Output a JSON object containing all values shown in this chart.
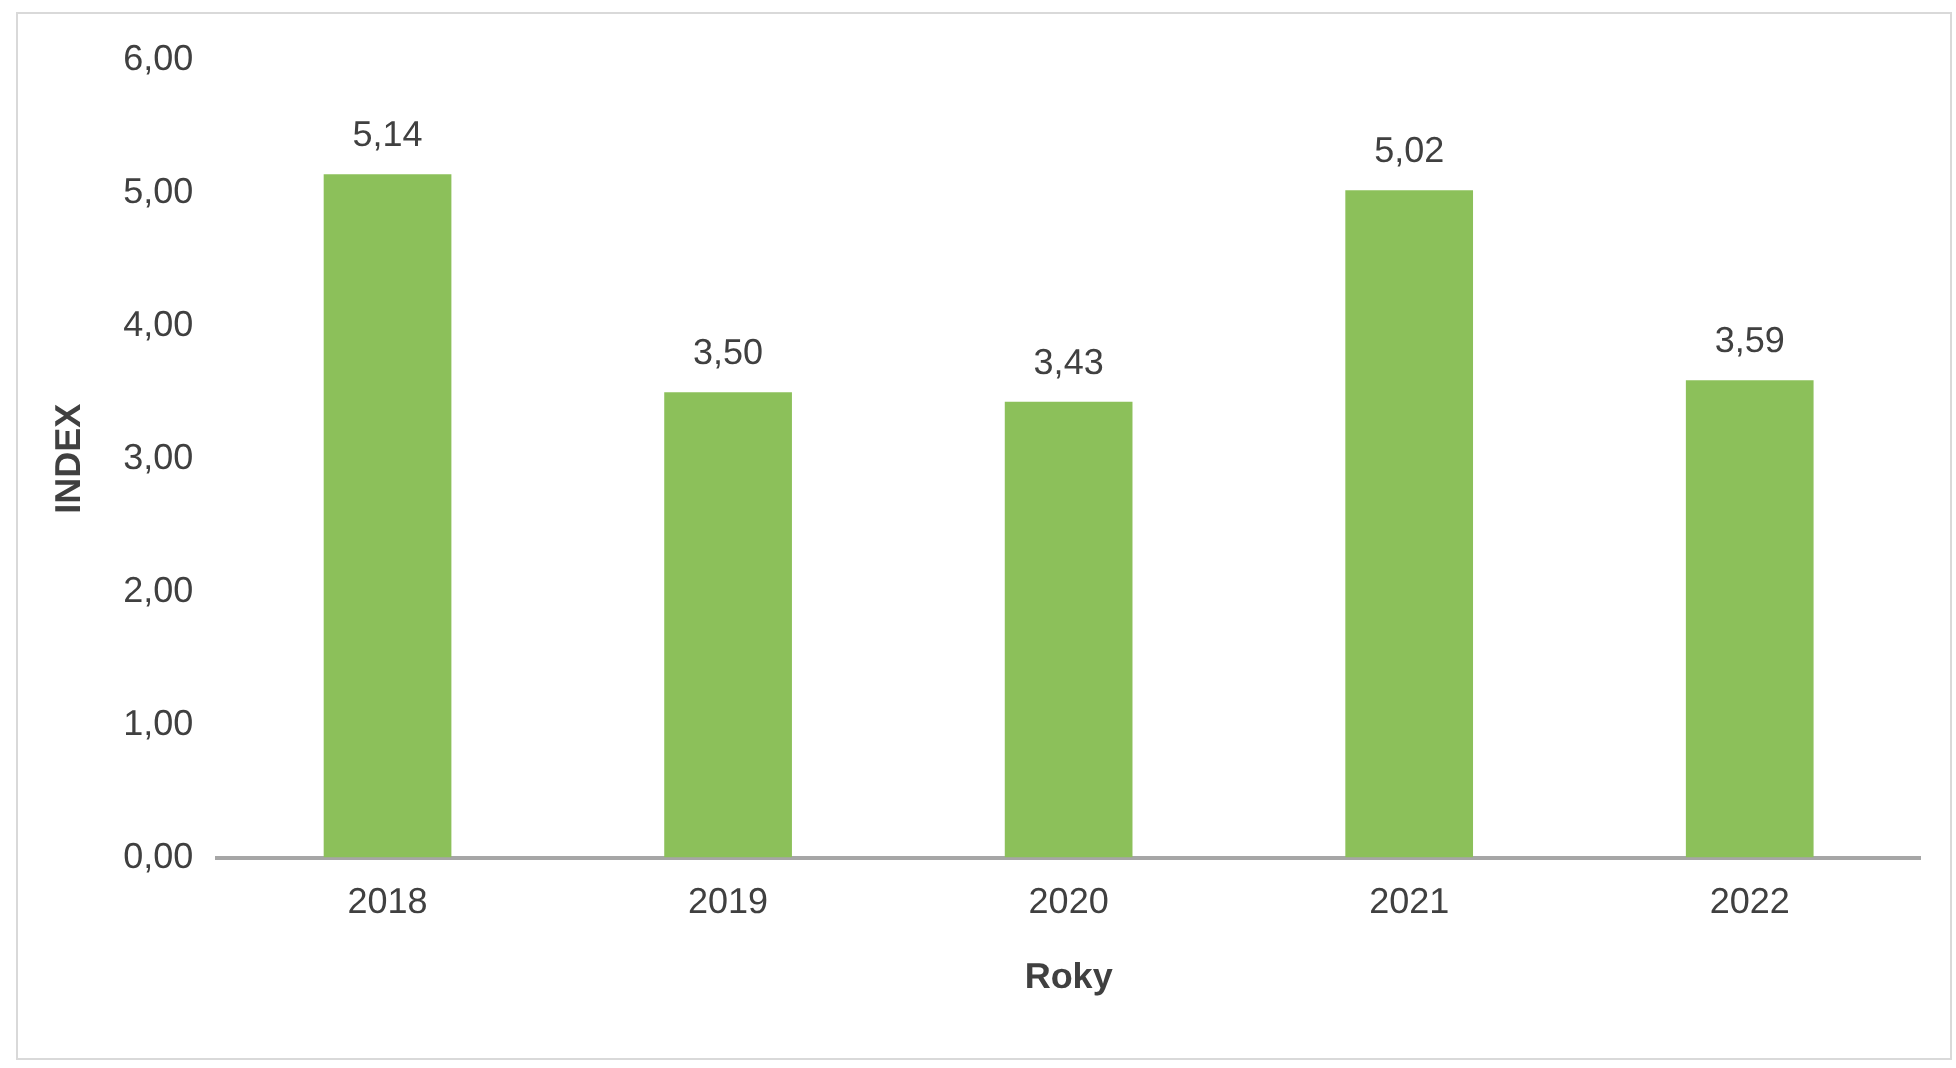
{
  "chart_data": {
    "type": "bar",
    "xlabel": "Roky",
    "ylabel": "INDEX",
    "categories": [
      "2018",
      "2019",
      "2020",
      "2021",
      "2022"
    ],
    "values": [
      5.14,
      3.5,
      3.43,
      5.02,
      3.59
    ],
    "value_labels": [
      "5,14",
      "3,50",
      "3,43",
      "5,02",
      "3,59"
    ],
    "color": "#8cc05a",
    "ylim": [
      0,
      6
    ],
    "yticks": [
      {
        "value": 0,
        "label": "0,00"
      },
      {
        "value": 1,
        "label": "1,00"
      },
      {
        "value": 2,
        "label": "2,00"
      },
      {
        "value": 3,
        "label": "3,00"
      },
      {
        "value": 4,
        "label": "4,00"
      },
      {
        "value": 5,
        "label": "5,00"
      },
      {
        "value": 6,
        "label": "6,00"
      }
    ],
    "grid": false,
    "legend": false
  }
}
